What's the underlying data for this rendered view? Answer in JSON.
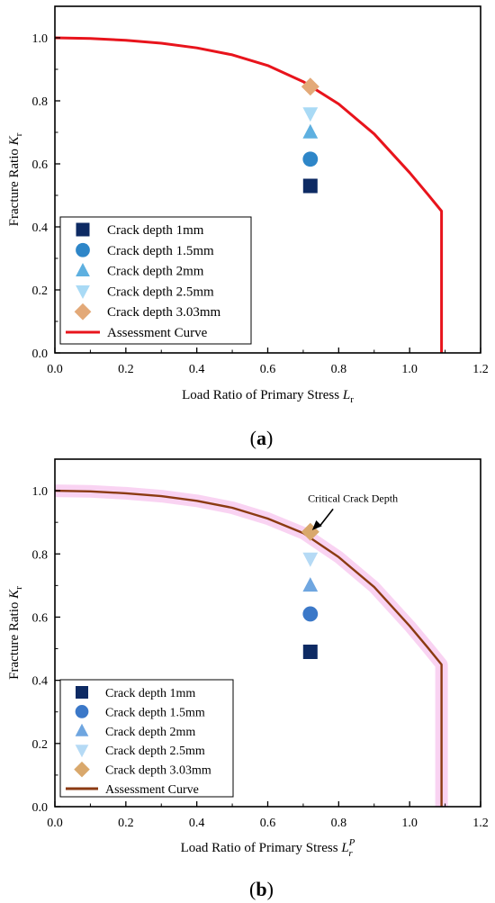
{
  "chart_data": [
    {
      "type": "scatter",
      "panel_label": {
        "open": "(",
        "letter": "a",
        "close": ")"
      },
      "title": "",
      "xlabel": {
        "text": "Load Ratio of Primary Stress ",
        "symbol": "L",
        "sub": "r",
        "sup": ""
      },
      "ylabel": {
        "text": "Fracture Ratio ",
        "symbol": "K",
        "sub": "r"
      },
      "xlim": [
        0,
        1.2
      ],
      "ylim": [
        0,
        1.1
      ],
      "xticks": [
        0.0,
        0.2,
        0.4,
        0.6,
        0.8,
        1.0,
        1.2
      ],
      "yticks": [
        0.0,
        0.2,
        0.4,
        0.6,
        0.8,
        1.0
      ],
      "xtick_labels": [
        "0.0",
        "0.2",
        "0.4",
        "0.6",
        "0.8",
        "1.0",
        "1.2"
      ],
      "ytick_labels": [
        "0.0",
        "0.2",
        "0.4",
        "0.6",
        "0.8",
        "1.0"
      ],
      "grid": false,
      "legend_position": "bottom-left",
      "series": [
        {
          "name": "Crack depth 1mm",
          "marker": "square",
          "color": "#0d2a63",
          "x": [
            0.72
          ],
          "y": [
            0.53
          ]
        },
        {
          "name": "Crack depth 1.5mm",
          "marker": "circle",
          "color": "#2e86c8",
          "x": [
            0.72
          ],
          "y": [
            0.615
          ]
        },
        {
          "name": "Crack depth 2mm",
          "marker": "triangle-up",
          "color": "#5eb0e0",
          "x": [
            0.72
          ],
          "y": [
            0.7
          ]
        },
        {
          "name": "Crack depth 2.5mm",
          "marker": "triangle-down",
          "color": "#a9daf5",
          "x": [
            0.72
          ],
          "y": [
            0.76
          ]
        },
        {
          "name": "Crack depth 3.03mm",
          "marker": "diamond",
          "color": "#e3a978",
          "x": [
            0.72
          ],
          "y": [
            0.845
          ]
        }
      ],
      "curve": {
        "name": "Assessment Curve",
        "color": "#e8141c",
        "x": [
          0,
          0.1,
          0.2,
          0.3,
          0.4,
          0.5,
          0.6,
          0.7,
          0.8,
          0.9,
          1.0,
          1.05,
          1.09,
          1.09
        ],
        "y": [
          1.0,
          0.998,
          0.992,
          0.983,
          0.968,
          0.946,
          0.912,
          0.861,
          0.79,
          0.695,
          0.572,
          0.505,
          0.45,
          0.0
        ]
      },
      "annotations": []
    },
    {
      "type": "scatter",
      "panel_label": {
        "open": "(",
        "letter": "b",
        "close": ")"
      },
      "title": "",
      "xlabel": {
        "text": "Load Ratio of Primary Stress ",
        "symbol": "L",
        "sub": "r",
        "sup": "P"
      },
      "ylabel": {
        "text": "Fracture Ratio ",
        "symbol": "K",
        "sub": "r"
      },
      "xlim": [
        0,
        1.2
      ],
      "ylim": [
        0,
        1.1
      ],
      "xticks": [
        0.0,
        0.2,
        0.4,
        0.6,
        0.8,
        1.0,
        1.2
      ],
      "yticks": [
        0.0,
        0.2,
        0.4,
        0.6,
        0.8,
        1.0
      ],
      "xtick_labels": [
        "0.0",
        "0.2",
        "0.4",
        "0.6",
        "0.8",
        "1.0",
        "1.2"
      ],
      "ytick_labels": [
        "0.0",
        "0.2",
        "0.4",
        "0.6",
        "0.8",
        "1.0"
      ],
      "grid": false,
      "legend_position": "bottom-left",
      "series": [
        {
          "name": "Crack depth 1mm",
          "marker": "square",
          "color": "#0d2a63",
          "x": [
            0.72
          ],
          "y": [
            0.49
          ]
        },
        {
          "name": "Crack depth 1.5mm",
          "marker": "circle",
          "color": "#3b78c8",
          "x": [
            0.72
          ],
          "y": [
            0.61
          ]
        },
        {
          "name": "Crack depth 2mm",
          "marker": "triangle-up",
          "color": "#6fa6e0",
          "x": [
            0.72
          ],
          "y": [
            0.7
          ]
        },
        {
          "name": "Crack depth 2.5mm",
          "marker": "triangle-down",
          "color": "#b5daf5",
          "x": [
            0.72
          ],
          "y": [
            0.785
          ]
        },
        {
          "name": "Crack depth 3.03mm",
          "marker": "diamond",
          "color": "#d9a86c",
          "x": [
            0.72
          ],
          "y": [
            0.87
          ]
        }
      ],
      "curve": {
        "name": "Assessment Curve",
        "color": "#8b3a12",
        "halo_color": "#f7c8ef",
        "x": [
          0,
          0.1,
          0.2,
          0.3,
          0.4,
          0.5,
          0.6,
          0.7,
          0.8,
          0.9,
          1.0,
          1.05,
          1.09,
          1.09
        ],
        "y": [
          1.0,
          0.998,
          0.992,
          0.983,
          0.968,
          0.946,
          0.912,
          0.866,
          0.79,
          0.695,
          0.572,
          0.505,
          0.45,
          0.0
        ]
      },
      "annotations": [
        {
          "text": "Critical Crack Depth",
          "x": 0.84,
          "y": 0.965,
          "arrow_to": [
            0.725,
            0.875
          ]
        }
      ]
    }
  ]
}
